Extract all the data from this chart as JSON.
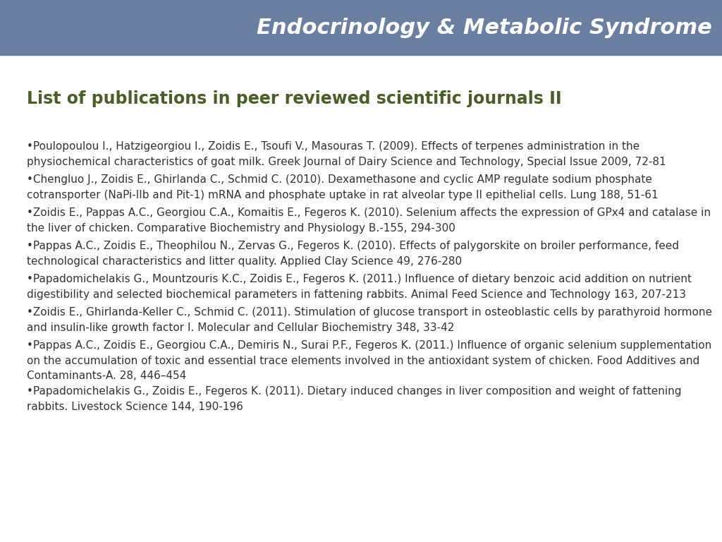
{
  "header_text": "Endocrinology & Metabolic Syndrome",
  "header_bg_color": "#6b7fa3",
  "header_text_color": "#ffffff",
  "title": "List of publications in peer reviewed scientific journals II",
  "title_color": "#4a5e28",
  "title_fontsize": 17,
  "body_bg_color": "#ffffff",
  "text_color": "#333333",
  "text_fontsize": 11.0,
  "publications": [
    "•Poulopoulou I., Hatzigeorgiou I., Zoidis E., Tsoufi V., Masouras T. (2009). Effects of terpenes administration in the\nphysiochemical characteristics of goat milk. Greek Journal of Dairy Science and Technology, Special Issue 2009, 72-81",
    "•Chengluo J., Zoidis E., Ghirlanda C., Schmid C. (2010). Dexamethasone and cyclic AMP regulate sodium phosphate\ncotransporter (NaPi-IIb and Pit-1) mRNA and phosphate uptake in rat alveolar type II epithelial cells. Lung 188, 51-61",
    "•Zoidis E., Pappas A.C., Georgiou C.A., Komaitis E., Fegeros K. (2010). Selenium affects the expression of GPx4 and catalase in\nthe liver of chicken. Comparative Biochemistry and Physiology B.-155, 294-300",
    "•Pappas A.C., Zoidis E., Theophilou N., Zervas G., Fegeros K. (2010). Effects of palygorskite on broiler performance, feed\ntechnological characteristics and litter quality. Applied Clay Science 49, 276-280",
    "•Papadomichelakis G., Mountzouris K.C., Zoidis E., Fegeros K. (2011.) Influence of dietary benzoic acid addition on nutrient\ndigestibility and selected biochemical parameters in fattening rabbits. Animal Feed Science and Technology 163, 207-213",
    "•Zoidis E., Ghirlanda-Keller C., Schmid C. (2011). Stimulation of glucose transport in osteoblastic cells by parathyroid hormone\nand insulin-like growth factor I. Molecular and Cellular Biochemistry 348, 33-42",
    "•Pappas A.C., Zoidis E., Georgiou C.A., Demiris N., Surai P.F., Fegeros K. (2011.) Influence of organic selenium supplementation\non the accumulation of toxic and essential trace elements involved in the antioxidant system of chicken. Food Additives and\nContaminants-A. 28, 446–454",
    "•Papadomichelakis G., Zoidis E., Fegeros K. (2011). Dietary induced changes in liver composition and weight of fattening\nrabbits. Livestock Science 144, 190-196"
  ]
}
